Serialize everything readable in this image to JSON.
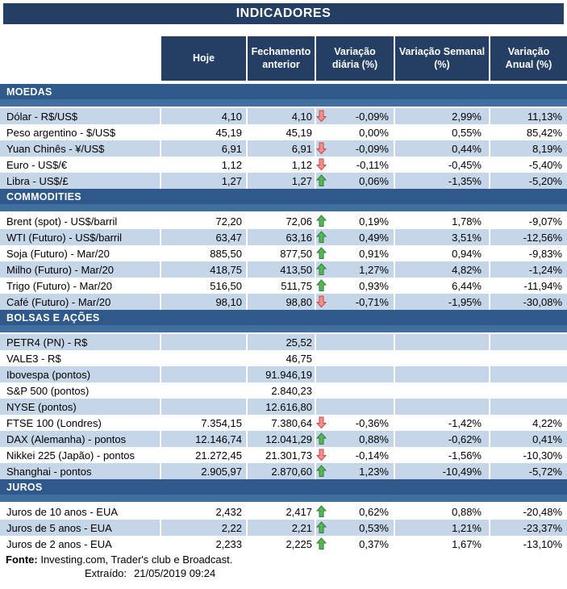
{
  "title": "INDICADORES",
  "columns": [
    "Hoje",
    "Fechamento anterior",
    "Variação diária (%)",
    "Variação Semanal (%)",
    "Variação Anual (%)"
  ],
  "colors": {
    "navy": "#243F63",
    "section_dark": "#2E598A",
    "section_light": "#41709F",
    "row_shaded": "#C5D6E9",
    "arrow_up_fill": "#57B65A",
    "arrow_up_stroke": "#2E7D33",
    "arrow_down_fill": "#F0908D",
    "arrow_down_stroke": "#C64848"
  },
  "sections": [
    {
      "name": "MOEDAS",
      "rows": [
        {
          "label": "Dólar - R$/US$",
          "hoje": "4,10",
          "fechamento": "4,10",
          "arrow": "down",
          "diaria": "-0,09%",
          "semanal": "2,99%",
          "anual": "11,13%",
          "shaded": true
        },
        {
          "label": "Peso argentino - $/US$",
          "hoje": "45,19",
          "fechamento": "45,19",
          "arrow": null,
          "diaria": "0,00%",
          "semanal": "0,55%",
          "anual": "85,42%",
          "shaded": false
        },
        {
          "label": "Yuan Chinês - ¥/US$",
          "hoje": "6,91",
          "fechamento": "6,91",
          "arrow": "down",
          "diaria": "-0,09%",
          "semanal": "0,44%",
          "anual": "8,19%",
          "shaded": true
        },
        {
          "label": "Euro - US$/€",
          "hoje": "1,12",
          "fechamento": "1,12",
          "arrow": "down",
          "diaria": "-0,11%",
          "semanal": "-0,45%",
          "anual": "-5,40%",
          "shaded": false
        },
        {
          "label": "Libra - US$/£",
          "hoje": "1,27",
          "fechamento": "1,27",
          "arrow": "up",
          "diaria": "0,06%",
          "semanal": "-1,35%",
          "anual": "-5,20%",
          "shaded": true
        }
      ]
    },
    {
      "name": "COMMODITIES",
      "rows": [
        {
          "label": "Brent (spot) - US$/barril",
          "hoje": "72,20",
          "fechamento": "72,06",
          "arrow": "up",
          "diaria": "0,19%",
          "semanal": "1,78%",
          "anual": "-9,07%",
          "shaded": false
        },
        {
          "label": "WTI (Futuro) - US$/barril",
          "hoje": "63,47",
          "fechamento": "63,16",
          "arrow": "up",
          "diaria": "0,49%",
          "semanal": "3,51%",
          "anual": "-12,56%",
          "shaded": true
        },
        {
          "label": "Soja (Futuro) - Mar/20",
          "hoje": "885,50",
          "fechamento": "877,50",
          "arrow": "up",
          "diaria": "0,91%",
          "semanal": "0,94%",
          "anual": "-9,83%",
          "shaded": false
        },
        {
          "label": "Milho (Futuro) - Mar/20",
          "hoje": "418,75",
          "fechamento": "413,50",
          "arrow": "up",
          "diaria": "1,27%",
          "semanal": "4,82%",
          "anual": "-1,24%",
          "shaded": true
        },
        {
          "label": "Trigo (Futuro) - Mar/20",
          "hoje": "516,50",
          "fechamento": "511,75",
          "arrow": "up",
          "diaria": "0,93%",
          "semanal": "6,44%",
          "anual": "-11,94%",
          "shaded": false
        },
        {
          "label": "Café (Futuro) - Mar/20",
          "hoje": "98,10",
          "fechamento": "98,80",
          "arrow": "down",
          "diaria": "-0,71%",
          "semanal": "-1,95%",
          "anual": "-30,08%",
          "shaded": true
        }
      ]
    },
    {
      "name": "BOLSAS E AÇÕES",
      "rows": [
        {
          "label": "PETR4 (PN) - R$",
          "hoje": "",
          "fechamento": "25,52",
          "arrow": null,
          "diaria": "",
          "semanal": "",
          "anual": "",
          "shaded": true
        },
        {
          "label": "VALE3 - R$",
          "hoje": "",
          "fechamento": "46,75",
          "arrow": null,
          "diaria": "",
          "semanal": "",
          "anual": "",
          "shaded": false
        },
        {
          "label": "Ibovespa (pontos)",
          "hoje": "",
          "fechamento": "91.946,19",
          "arrow": null,
          "diaria": "",
          "semanal": "",
          "anual": "",
          "shaded": true
        },
        {
          "label": "S&P 500 (pontos)",
          "hoje": "",
          "fechamento": "2.840,23",
          "arrow": null,
          "diaria": "",
          "semanal": "",
          "anual": "",
          "shaded": false
        },
        {
          "label": "NYSE (pontos)",
          "hoje": "",
          "fechamento": "12.616,80",
          "arrow": null,
          "diaria": "",
          "semanal": "",
          "anual": "",
          "shaded": true
        },
        {
          "label": "FTSE 100 (Londres)",
          "hoje": "7.354,15",
          "fechamento": "7.380,64",
          "arrow": "down",
          "diaria": "-0,36%",
          "semanal": "-1,42%",
          "anual": "4,22%",
          "shaded": false
        },
        {
          "label": "DAX (Alemanha) - pontos",
          "hoje": "12.146,74",
          "fechamento": "12.041,29",
          "arrow": "up",
          "diaria": "0,88%",
          "semanal": "-0,62%",
          "anual": "0,41%",
          "shaded": true
        },
        {
          "label": "Nikkei 225 (Japão) - pontos",
          "hoje": "21.272,45",
          "fechamento": "21.301,73",
          "arrow": "down",
          "diaria": "-0,14%",
          "semanal": "-1,56%",
          "anual": "-10,30%",
          "shaded": false
        },
        {
          "label": "Shanghai - pontos",
          "hoje": "2.905,97",
          "fechamento": "2.870,60",
          "arrow": "up",
          "diaria": "1,23%",
          "semanal": "-10,49%",
          "anual": "-5,72%",
          "shaded": true
        }
      ]
    },
    {
      "name": "JUROS",
      "rows": [
        {
          "label": "Juros de 10 anos - EUA",
          "hoje": "2,432",
          "fechamento": "2,417",
          "arrow": "up",
          "diaria": "0,62%",
          "semanal": "0,88%",
          "anual": "-20,48%",
          "shaded": false
        },
        {
          "label": "Juros de 5 anos - EUA",
          "hoje": "2,22",
          "fechamento": "2,21",
          "arrow": "up",
          "diaria": "0,53%",
          "semanal": "1,21%",
          "anual": "-23,37%",
          "shaded": true
        },
        {
          "label": "Juros de 2 anos - EUA",
          "hoje": "2,233",
          "fechamento": "2,225",
          "arrow": "up",
          "diaria": "0,37%",
          "semanal": "1,67%",
          "anual": "-13,10%",
          "shaded": false
        }
      ]
    }
  ],
  "footer": {
    "fonte_label": "Fonte:",
    "fonte_text": " Investing.com, Trader's club e Broadcast.",
    "extraido_label": "Extraído:",
    "extraido_value": "21/05/2019 09:24"
  }
}
